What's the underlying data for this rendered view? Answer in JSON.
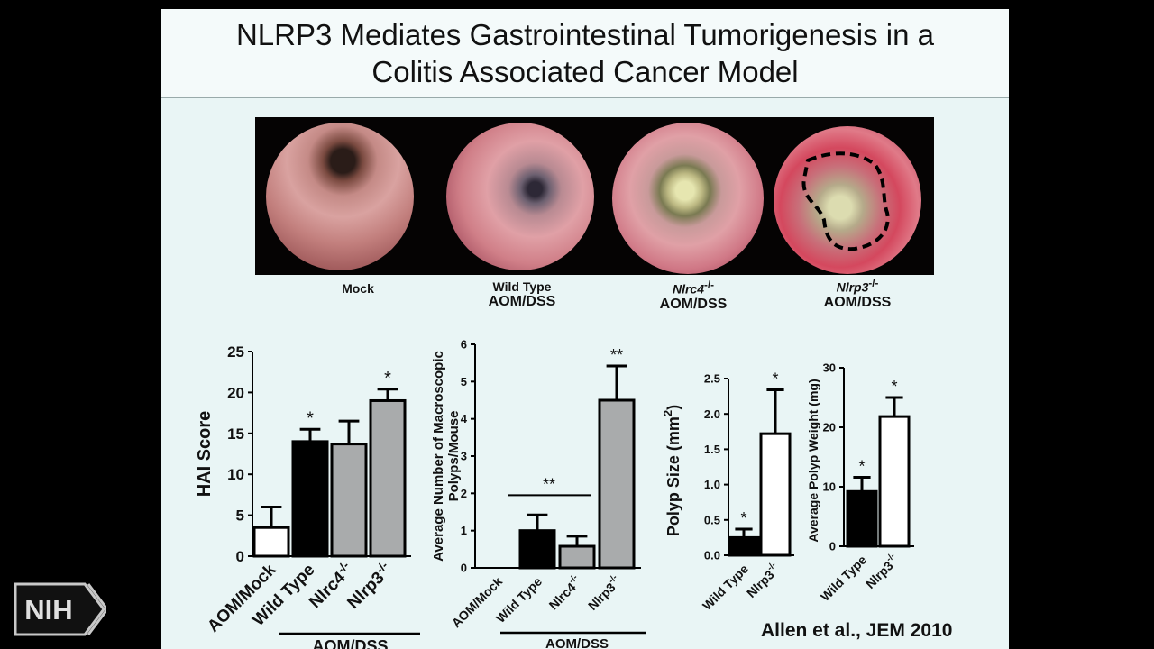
{
  "slide": {
    "title_line1": "NLRP3 Mediates Gastrointestinal Tumorigenesis in a",
    "title_line2": "Colitis Associated Cancer Model",
    "citation": "Allen et al., JEM 2010",
    "logo_text": "NIH"
  },
  "photos": [
    {
      "line1": "Mock",
      "line2": "",
      "sup": ""
    },
    {
      "line1": "Wild Type",
      "line2": "AOM/DSS",
      "sup": ""
    },
    {
      "line1": "Nlrc4",
      "line2": "AOM/DSS",
      "sup": "-/-"
    },
    {
      "line1": "Nlrp3",
      "line2": "AOM/DSS",
      "sup": "-/-"
    }
  ],
  "colors": {
    "black_bar": "#000000",
    "gray_bar": "#a9abac",
    "white_bar": "#ffffff"
  },
  "chart_data": [
    {
      "type": "bar",
      "ylabel": "HAI Score",
      "ylim": [
        0,
        25
      ],
      "yticks": [
        "0",
        "5",
        "10",
        "15",
        "20",
        "25"
      ],
      "group_label": "AOM/DSS",
      "categories": [
        {
          "label": "AOM/Mock",
          "sup": ""
        },
        {
          "label": "Wild Type",
          "sup": ""
        },
        {
          "label": "Nlrc4",
          "sup": "-/-"
        },
        {
          "label": "Nlrp3",
          "sup": "-/-"
        }
      ],
      "values": [
        3.5,
        14,
        13.7,
        19
      ],
      "errors": [
        2.5,
        1.5,
        2.8,
        1.4
      ],
      "fills": [
        "white",
        "black",
        "gray",
        "gray"
      ],
      "annotations": [
        "",
        "*",
        "",
        "*"
      ]
    },
    {
      "type": "bar",
      "ylabel_line1": "Average Number of Macroscopic",
      "ylabel_line2": "Polyps/Mouse",
      "ylim": [
        0,
        6
      ],
      "yticks": [
        "0",
        "1",
        "2",
        "3",
        "4",
        "5",
        "6"
      ],
      "group_label": "AOM/DSS",
      "bracket_label": "**",
      "categories": [
        {
          "label": "AOM/Mock",
          "sup": ""
        },
        {
          "label": "Wild Type",
          "sup": ""
        },
        {
          "label": "Nlrc4",
          "sup": "-/-"
        },
        {
          "label": "Nlrp3",
          "sup": "-/-"
        }
      ],
      "values": [
        0,
        1.0,
        0.58,
        4.5
      ],
      "errors": [
        0,
        0.42,
        0.27,
        0.92
      ],
      "fills": [
        "white",
        "black",
        "gray",
        "gray"
      ],
      "annotations": [
        "",
        "",
        "",
        "**"
      ]
    },
    {
      "type": "bar",
      "ylabel": "Polyp Size (mm",
      "ylabel_sup": "2",
      "ylabel_end": ")",
      "ylim": [
        0,
        2.5
      ],
      "yticks": [
        "0.0",
        "0.5",
        "1.0",
        "1.5",
        "2.0",
        "2.5"
      ],
      "categories": [
        {
          "label": "Wild Type",
          "sup": ""
        },
        {
          "label": "Nlrp3",
          "sup": "-/-"
        }
      ],
      "values": [
        0.25,
        1.72
      ],
      "errors": [
        0.12,
        0.62
      ],
      "fills": [
        "black",
        "white"
      ],
      "annotations": [
        "*",
        "*"
      ]
    },
    {
      "type": "bar",
      "ylabel": "Average Polyp Weight (mg)",
      "ylim": [
        0,
        30
      ],
      "yticks": [
        "0",
        "10",
        "20",
        "30"
      ],
      "categories": [
        {
          "label": "Wild Type",
          "sup": ""
        },
        {
          "label": "Nlrp3",
          "sup": "-/-"
        }
      ],
      "values": [
        9.2,
        21.8
      ],
      "errors": [
        2.4,
        3.2
      ],
      "fills": [
        "black",
        "white"
      ],
      "annotations": [
        "*",
        "*"
      ]
    }
  ]
}
